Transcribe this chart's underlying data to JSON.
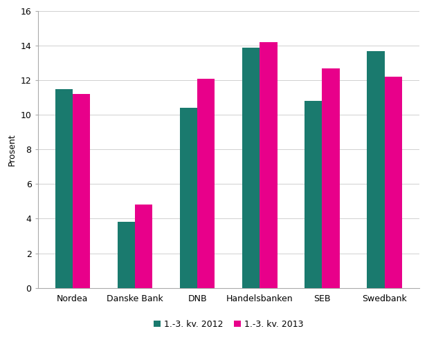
{
  "categories": [
    "Nordea",
    "Danske Bank",
    "DNB",
    "Handelsbanken",
    "SEB",
    "Swedbank"
  ],
  "series_2012": [
    11.5,
    3.8,
    10.4,
    13.9,
    10.8,
    13.7
  ],
  "series_2013": [
    11.2,
    4.8,
    12.1,
    14.2,
    12.7,
    12.2
  ],
  "color_2012": "#1a7a6e",
  "color_2013": "#e8008a",
  "legend_2012": "1.-3. kv. 2012",
  "legend_2013": "1.-3. kv. 2013",
  "ylabel": "Prosent",
  "ylim": [
    0,
    16
  ],
  "yticks": [
    0,
    2,
    4,
    6,
    8,
    10,
    12,
    14,
    16
  ],
  "bar_width": 0.28,
  "background_color": "#ffffff",
  "spine_color": "#aaaaaa",
  "tick_fontsize": 9,
  "label_fontsize": 9,
  "legend_fontsize": 9
}
